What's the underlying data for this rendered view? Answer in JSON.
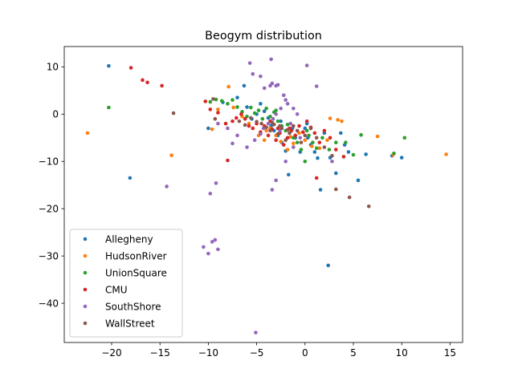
{
  "chart_data": {
    "type": "scatter",
    "title": "Beogym distribution",
    "xlabel": "",
    "ylabel": "",
    "xlim": [
      -24.9,
      16.3
    ],
    "ylim": [
      -48.3,
      14.3
    ],
    "xticks": [
      -20,
      -15,
      -10,
      -5,
      0,
      5,
      10,
      15
    ],
    "yticks": [
      10,
      0,
      -10,
      -20,
      -30,
      -40
    ],
    "xtick_labels": [
      "−20",
      "−15",
      "−10",
      "−5",
      "0",
      "5",
      "10",
      "15"
    ],
    "ytick_labels": [
      "10",
      "0",
      "−10",
      "−20",
      "−30",
      "−40"
    ],
    "grid": false,
    "legend_position": "lower-left",
    "series": [
      {
        "name": "Allegheny",
        "color": "#1f77b4",
        "points": [
          [
            -20.3,
            10.2
          ],
          [
            -18.1,
            -13.5
          ],
          [
            -10,
            -3
          ],
          [
            -8.5,
            2.5
          ],
          [
            -7,
            3.5
          ],
          [
            -6.3,
            6
          ],
          [
            -6,
            1.5
          ],
          [
            -5.5,
            -1
          ],
          [
            -5,
            0
          ],
          [
            -4.6,
            2.2
          ],
          [
            -4.2,
            0.6
          ],
          [
            -3.8,
            -0.8
          ],
          [
            -3.5,
            -2.5
          ],
          [
            -3.2,
            -3.5
          ],
          [
            -2.8,
            -4.5
          ],
          [
            -2.4,
            -6
          ],
          [
            -2,
            -7.8
          ],
          [
            -1.7,
            -12.8
          ],
          [
            -1.3,
            -3
          ],
          [
            -1,
            -5
          ],
          [
            -0.5,
            -8
          ],
          [
            0,
            -3
          ],
          [
            0.3,
            -5
          ],
          [
            0.6,
            -6.5
          ],
          [
            1,
            -8
          ],
          [
            1.3,
            -9.3
          ],
          [
            1.6,
            -16
          ],
          [
            2,
            -4
          ],
          [
            2.4,
            -32
          ],
          [
            2.6,
            -9.2
          ],
          [
            3.2,
            -12.5
          ],
          [
            3.7,
            -4
          ],
          [
            4.1,
            -6.5
          ],
          [
            4.5,
            -8
          ],
          [
            5.5,
            -14
          ],
          [
            6.3,
            -8.5
          ],
          [
            9,
            -8.8
          ],
          [
            10,
            -9.2
          ],
          [
            0.2,
            -2
          ],
          [
            -2.5,
            -1.5
          ]
        ]
      },
      {
        "name": "HudsonRiver",
        "color": "#ff7f0e",
        "points": [
          [
            -22.5,
            -4
          ],
          [
            -13.8,
            -8.7
          ],
          [
            -9.6,
            -3.2
          ],
          [
            -9,
            1
          ],
          [
            -7.9,
            5.8
          ],
          [
            -7.4,
            1.4
          ],
          [
            -6.5,
            -0.5
          ],
          [
            -5.8,
            -2
          ],
          [
            -4.8,
            -4.5
          ],
          [
            -4.2,
            -5.5
          ],
          [
            -3.6,
            -3
          ],
          [
            -3,
            -4.5
          ],
          [
            -2.5,
            -5.8
          ],
          [
            -1.8,
            -7.5
          ],
          [
            -1.2,
            -6.2
          ],
          [
            -0.6,
            -4
          ],
          [
            0,
            -5.5
          ],
          [
            0.7,
            -6.8
          ],
          [
            1.5,
            -7.2
          ],
          [
            2.3,
            -5.5
          ],
          [
            2.6,
            -0.9
          ],
          [
            3.4,
            -1.2
          ],
          [
            3.8,
            -1.5
          ],
          [
            7.5,
            -4.7
          ],
          [
            9.1,
            -8.6
          ],
          [
            14.6,
            -8.5
          ],
          [
            -4,
            -3.5
          ],
          [
            -1.5,
            -4.8
          ]
        ]
      },
      {
        "name": "UnionSquare",
        "color": "#2ca02c",
        "points": [
          [
            -20.3,
            1.4
          ],
          [
            -9.8,
            2.6
          ],
          [
            -9.2,
            3.1
          ],
          [
            -8.6,
            2.8
          ],
          [
            -8,
            2.2
          ],
          [
            -7.5,
            3
          ],
          [
            -7,
            1.5
          ],
          [
            -6.5,
            0.5
          ],
          [
            -6,
            -0.5
          ],
          [
            -5.6,
            1.4
          ],
          [
            -5.2,
            0.2
          ],
          [
            -4.8,
            0.8
          ],
          [
            -4.4,
            -1
          ],
          [
            -4,
            1.2
          ],
          [
            -3.6,
            -0.5
          ],
          [
            -3.2,
            0.4
          ],
          [
            -2.8,
            -1.5
          ],
          [
            -2.4,
            -2.5
          ],
          [
            -2,
            -3.5
          ],
          [
            -1.6,
            -4
          ],
          [
            -1.2,
            -5
          ],
          [
            -0.8,
            -6
          ],
          [
            -0.4,
            -7.5
          ],
          [
            0,
            -10
          ],
          [
            0.4,
            -4.5
          ],
          [
            0.8,
            -6
          ],
          [
            1.2,
            -7.2
          ],
          [
            1.8,
            -5
          ],
          [
            2.5,
            -7.5
          ],
          [
            3.2,
            -6
          ],
          [
            4.2,
            -6
          ],
          [
            5,
            -8.6
          ],
          [
            5.8,
            -4.4
          ],
          [
            9.2,
            -8.3
          ],
          [
            10.3,
            -5
          ],
          [
            -3,
            0.8
          ],
          [
            -1.8,
            -2.2
          ],
          [
            0.2,
            -3.5
          ]
        ]
      },
      {
        "name": "CMU",
        "color": "#d62728",
        "points": [
          [
            -18,
            9.8
          ],
          [
            -16.8,
            7.2
          ],
          [
            -16.3,
            6.7
          ],
          [
            -14.8,
            6
          ],
          [
            -10.3,
            2.7
          ],
          [
            -9.8,
            1
          ],
          [
            -9,
            0.3
          ],
          [
            -8.2,
            -2
          ],
          [
            -7.5,
            -1.5
          ],
          [
            -7.1,
            -0.8
          ],
          [
            -6.6,
            0
          ],
          [
            -6.2,
            -1
          ],
          [
            -5.8,
            -2.5
          ],
          [
            -5.4,
            -3
          ],
          [
            -5,
            -2
          ],
          [
            -4.6,
            -3.8
          ],
          [
            -4.2,
            -2.5
          ],
          [
            -3.8,
            -4.5
          ],
          [
            -3.4,
            -3.2
          ],
          [
            -3,
            -5.5
          ],
          [
            -2.6,
            -4
          ],
          [
            -2.2,
            -6.5
          ],
          [
            -1.8,
            -5
          ],
          [
            -1.4,
            -3.5
          ],
          [
            -1,
            -4.5
          ],
          [
            -0.6,
            -2.5
          ],
          [
            -0.2,
            -3.8
          ],
          [
            0.2,
            -1.5
          ],
          [
            0.6,
            -2.8
          ],
          [
            1,
            -4
          ],
          [
            1.5,
            -6
          ],
          [
            2,
            -3.5
          ],
          [
            2.6,
            -5
          ],
          [
            3.2,
            -7.5
          ],
          [
            4,
            -9
          ],
          [
            1.2,
            -13.5
          ],
          [
            -8,
            -9.8
          ],
          [
            -2.8,
            -3
          ],
          [
            -3.6,
            -1.5
          ],
          [
            -1.6,
            -3
          ]
        ]
      },
      {
        "name": "SouthShore",
        "color": "#9467bd",
        "points": [
          [
            -5.7,
            10.8
          ],
          [
            -5.4,
            8.5
          ],
          [
            -4.6,
            8
          ],
          [
            -4.2,
            5.5
          ],
          [
            -3.6,
            6
          ],
          [
            -3.4,
            6.5
          ],
          [
            -3,
            6
          ],
          [
            -2.8,
            6.2
          ],
          [
            -3.5,
            11.6
          ],
          [
            -2.2,
            4
          ],
          [
            -2,
            3
          ],
          [
            -1.8,
            2.2
          ],
          [
            -2.5,
            1.2
          ],
          [
            -3,
            0
          ],
          [
            -3.3,
            -1
          ],
          [
            -3.8,
            -2
          ],
          [
            -4.3,
            -3
          ],
          [
            -4.6,
            -4.2
          ],
          [
            -5.2,
            -5.5
          ],
          [
            -6,
            -7
          ],
          [
            -7,
            -4.5
          ],
          [
            -8,
            -3
          ],
          [
            -9,
            -2
          ],
          [
            -7.5,
            -6.2
          ],
          [
            -3,
            -14
          ],
          [
            -3.4,
            -16
          ],
          [
            -14.3,
            -15.3
          ],
          [
            -9.8,
            -16.8
          ],
          [
            -9.2,
            -14.6
          ],
          [
            -10.5,
            -28.1
          ],
          [
            -10,
            -29.5
          ],
          [
            -9.6,
            -27
          ],
          [
            -9.3,
            -26.6
          ],
          [
            -9,
            -28.6
          ],
          [
            -5.1,
            -46.2
          ],
          [
            0.2,
            10.3
          ],
          [
            1.2,
            5.9
          ],
          [
            2.8,
            -10
          ],
          [
            -0.5,
            -5
          ],
          [
            -1.2,
            -7
          ],
          [
            -2,
            -10
          ],
          [
            -1.2,
            1.2
          ],
          [
            -0.8,
            0
          ],
          [
            -2.6,
            -3.5
          ],
          [
            -1.5,
            -2
          ]
        ]
      },
      {
        "name": "WallStreet",
        "color": "#8c564b",
        "points": [
          [
            -13.6,
            0.2
          ],
          [
            -9.5,
            3.2
          ],
          [
            -9.3,
            -1
          ],
          [
            -6.8,
            -1.5
          ],
          [
            -6.2,
            -2.3
          ],
          [
            -5.6,
            -0.8
          ],
          [
            -5,
            -1.6
          ],
          [
            -4.5,
            -2
          ],
          [
            -4,
            -2.8
          ],
          [
            -3.6,
            -3.5
          ],
          [
            -3.2,
            -2.2
          ],
          [
            -2.8,
            -4.2
          ],
          [
            -2.4,
            -3
          ],
          [
            -2,
            -5.5
          ],
          [
            -1.6,
            -4
          ],
          [
            -1.2,
            -2.5
          ],
          [
            -0.8,
            -3.5
          ],
          [
            -0.4,
            -6
          ],
          [
            0,
            -4.5
          ],
          [
            0.6,
            -3
          ],
          [
            1.2,
            -5
          ],
          [
            2,
            -7
          ],
          [
            2.8,
            -8.8
          ],
          [
            3.2,
            -15.9
          ],
          [
            4.6,
            -17.6
          ],
          [
            6.6,
            -19.5
          ],
          [
            -2.6,
            -2.5
          ],
          [
            -1.8,
            -3.3
          ],
          [
            -3.4,
            -1.8
          ]
        ]
      }
    ]
  }
}
